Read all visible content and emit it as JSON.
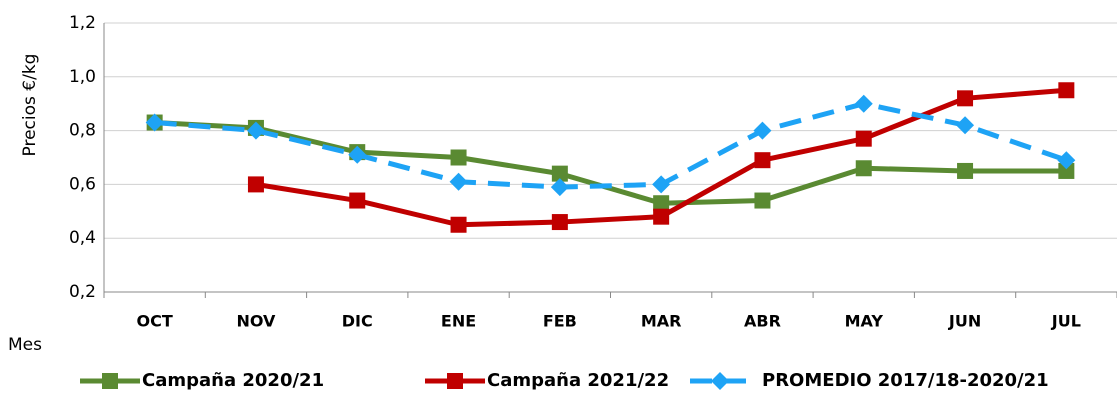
{
  "chart_data": {
    "type": "line",
    "ylabel": "Precios €/kg",
    "xlabel": "Mes",
    "categories": [
      "OCT",
      "NOV",
      "DIC",
      "ENE",
      "FEB",
      "MAR",
      "ABR",
      "MAY",
      "JUN",
      "JUL"
    ],
    "series": [
      {
        "name": "Campaña 2020/21",
        "color": "#5a8a32",
        "marker": "square",
        "dashed": false,
        "values": [
          0.83,
          0.81,
          0.72,
          0.7,
          0.64,
          0.53,
          0.54,
          0.66,
          0.65,
          0.65
        ]
      },
      {
        "name": "Campaña 2021/22",
        "color": "#c00000",
        "marker": "square",
        "dashed": false,
        "values": [
          null,
          0.6,
          0.54,
          0.45,
          0.46,
          0.48,
          0.69,
          0.77,
          0.92,
          0.95
        ]
      },
      {
        "name": "PROMEDIO 2017/18-2020/21",
        "color": "#1ea3f5",
        "marker": "diamond",
        "dashed": true,
        "values": [
          0.83,
          0.8,
          0.71,
          0.61,
          0.59,
          0.6,
          0.8,
          0.9,
          0.82,
          0.69
        ]
      }
    ],
    "ylim": [
      0.2,
      1.2
    ],
    "yticks": [
      {
        "value": 0.2,
        "label": "0,2"
      },
      {
        "value": 0.4,
        "label": "0,4"
      },
      {
        "value": 0.6,
        "label": "0,6"
      },
      {
        "value": 0.8,
        "label": "0,8"
      },
      {
        "value": 1.0,
        "label": "1,0"
      },
      {
        "value": 1.2,
        "label": "1,2"
      }
    ],
    "grid": true,
    "legend": "bottom"
  }
}
